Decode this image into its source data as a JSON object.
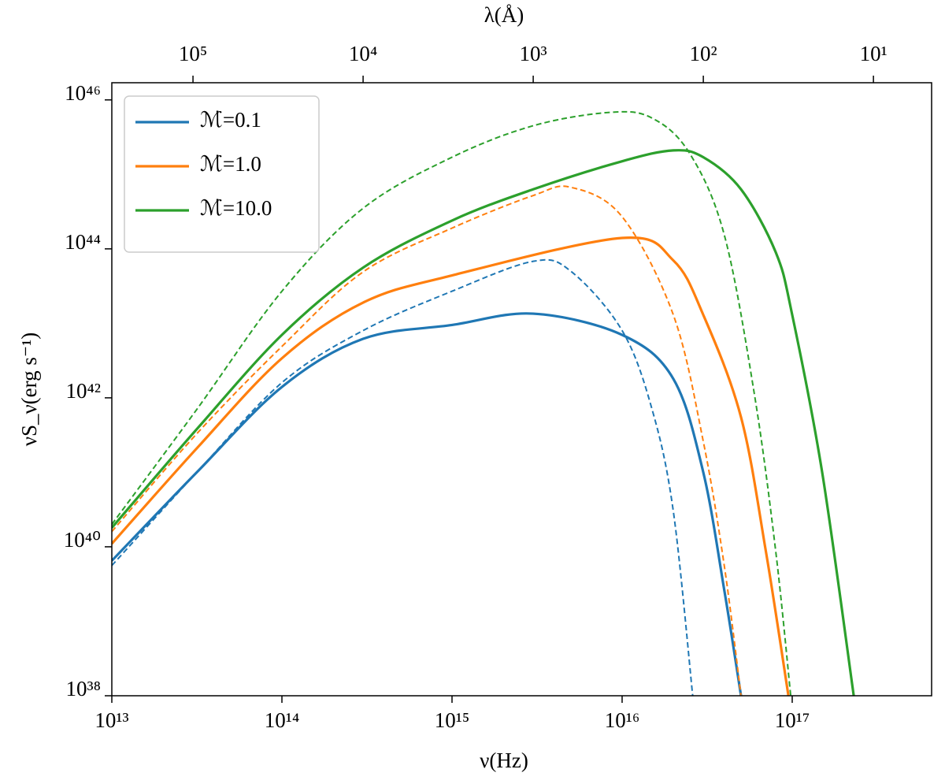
{
  "chart_data": {
    "type": "line",
    "xlabel": "ν(Hz)",
    "ylabel": "νS_ν(erg s⁻¹)",
    "x2label": "λ(Å)",
    "xscale": "log",
    "yscale": "log",
    "x2scale": "log",
    "xlim": [
      10000000000000.0,
      6.6e+17
    ],
    "ylim": [
      1e+38,
      1.7e+46
    ],
    "x2lim": [
      300000,
      4.55
    ],
    "xticks": [
      {
        "value": 10000000000000.0,
        "label": "10¹³"
      },
      {
        "value": 100000000000000.0,
        "label": "10¹⁴"
      },
      {
        "value": 1000000000000000.0,
        "label": "10¹⁵"
      },
      {
        "value": 1e+16,
        "label": "10¹⁶"
      },
      {
        "value": 1e+17,
        "label": "10¹⁷"
      }
    ],
    "yticks": [
      {
        "value": 1e+38,
        "label": "10³⁸"
      },
      {
        "value": 1e+40,
        "label": "10⁴⁰"
      },
      {
        "value": 1e+42,
        "label": "10⁴²"
      },
      {
        "value": 1e+44,
        "label": "10⁴⁴"
      },
      {
        "value": 1e+46,
        "label": "10⁴⁶"
      }
    ],
    "x2ticks": [
      {
        "value": 100000,
        "label": "10⁵"
      },
      {
        "value": 10000,
        "label": "10⁴"
      },
      {
        "value": 1000,
        "label": "10³"
      },
      {
        "value": 100,
        "label": "10²"
      },
      {
        "value": 10,
        "label": "10¹"
      }
    ],
    "legend": "upper left",
    "series": [
      {
        "name": "ℳ̇=0.1",
        "color": "#1f77b4",
        "dash": false,
        "x": [
          10000000000000.0,
          31600000000000.0,
          100000000000000.0,
          300000000000000.0,
          1000000000000000.0,
          3000000000000000.0,
          1e+16,
          2e+16,
          3e+16,
          4e+16,
          5e+16
        ],
        "values": [
          6.5e+39,
          1e+41,
          1.4e+42,
          6.2e+42,
          9.5e+42,
          1.35e+43,
          7e+42,
          1.8e+42,
          1e+41,
          2.5e+39,
          1e+38
        ]
      },
      {
        "name": "ℳ̇=1.0",
        "color": "#ff7f0e",
        "dash": false,
        "x": [
          10000000000000.0,
          31600000000000.0,
          100000000000000.0,
          300000000000000.0,
          1000000000000000.0,
          1e+16,
          2e+16,
          3e+16,
          5e+16,
          7e+16,
          9.5e+16
        ],
        "values": [
          1.1e+40,
          2.1e+41,
          3.4e+42,
          1.9e+43,
          4.4e+43,
          1.4e+44,
          7e+43,
          1.3e+43,
          5.5e+41,
          8.7e+39,
          1e+38
        ]
      },
      {
        "name": "ℳ̇=10.0",
        "color": "#2ca02c",
        "dash": false,
        "x": [
          10000000000000.0,
          31600000000000.0,
          100000000000000.0,
          300000000000000.0,
          1000000000000000.0,
          3000000000000000.0,
          1e+16,
          2e+16,
          3e+16,
          5e+16,
          8e+16,
          1e+17,
          1.5e+17,
          2.3e+17
        ],
        "values": [
          1.8e+40,
          3.8e+41,
          7e+42,
          5.6e+43,
          2.4e+44,
          6.3e+44,
          1.5e+45,
          2.1e+45,
          1.7e+45,
          6.3e+44,
          9e+43,
          1.3e+43,
          1e+41,
          1e+38
        ]
      },
      {
        "color": "#1f77b4",
        "dash": true,
        "x": [
          10000000000000.0,
          31600000000000.0,
          100000000000000.0,
          300000000000000.0,
          1000000000000000.0,
          3000000000000000.0,
          5000000000000000.0,
          1e+16,
          1.5e+16,
          2e+16,
          2.6e+16
        ],
        "values": [
          5.6e+39,
          1e+41,
          1.6e+42,
          8e+42,
          2.7e+43,
          6.8e+43,
          5e+43,
          8e+42,
          7e+41,
          3e+40,
          1e+38
        ]
      },
      {
        "color": "#ff7f0e",
        "dash": true,
        "x": [
          10000000000000.0,
          31600000000000.0,
          100000000000000.0,
          300000000000000.0,
          1000000000000000.0,
          3000000000000000.0,
          5000000000000000.0,
          1e+16,
          2e+16,
          3e+16,
          4e+16,
          5e+16
        ],
        "values": [
          1.6e+40,
          3.3e+41,
          4.9e+42,
          4.9e+43,
          1.9e+44,
          5.2e+44,
          6.7e+44,
          2.7e+44,
          1.3e+43,
          2.6e+41,
          5.3e+39,
          1e+38
        ]
      },
      {
        "color": "#2ca02c",
        "dash": true,
        "x": [
          10000000000000.0,
          31600000000000.0,
          100000000000000.0,
          300000000000000.0,
          1000000000000000.0,
          3000000000000000.0,
          8500000000000000.0,
          1.5e+16,
          2.5e+16,
          4e+16,
          6e+16,
          8e+16,
          9.8e+16
        ],
        "values": [
          2e+40,
          7e+41,
          2.7e+43,
          3.5e+44,
          1.7e+45,
          4.5e+45,
          6.8e+45,
          5.7e+45,
          1.9e+45,
          1.5e+44,
          1.1e+42,
          8.7e+39,
          1e+38
        ]
      }
    ]
  }
}
